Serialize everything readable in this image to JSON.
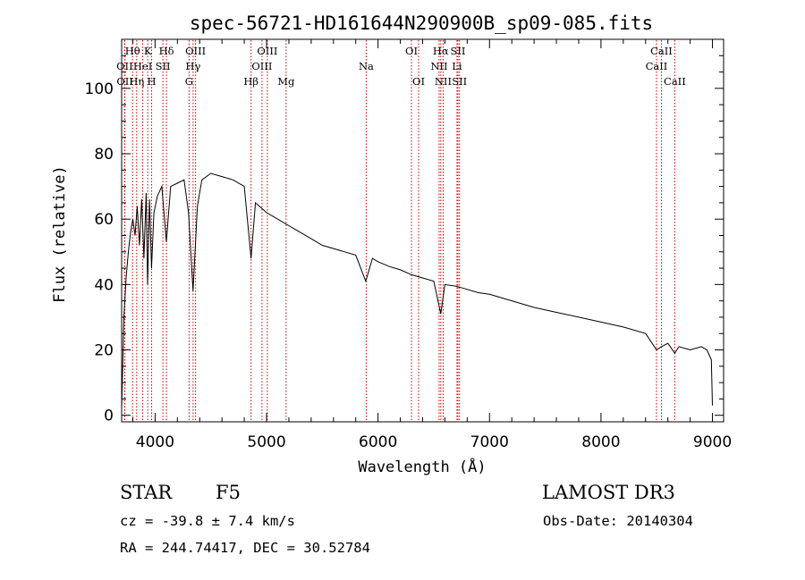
{
  "chart_data": {
    "type": "line",
    "title": "spec-56721-HD161644N290900B_sp09-085.fits",
    "xlabel": "Wavelength (Å)",
    "ylabel": "Flux (relative)",
    "xlim": [
      3700,
      9100
    ],
    "ylim": [
      -2,
      115
    ],
    "xticks": [
      4000,
      5000,
      6000,
      7000,
      8000,
      9000
    ],
    "yticks": [
      0,
      20,
      40,
      60,
      80,
      100
    ],
    "series": [
      {
        "name": "spectrum",
        "x": [
          3700,
          3720,
          3740,
          3760,
          3780,
          3800,
          3820,
          3840,
          3860,
          3880,
          3900,
          3920,
          3933,
          3950,
          3968,
          3990,
          4020,
          4060,
          4101,
          4140,
          4200,
          4260,
          4300,
          4340,
          4380,
          4420,
          4500,
          4600,
          4700,
          4800,
          4861,
          4900,
          5000,
          5100,
          5200,
          5300,
          5400,
          5500,
          5600,
          5700,
          5800,
          5890,
          5950,
          6000,
          6100,
          6200,
          6300,
          6400,
          6500,
          6563,
          6600,
          6700,
          6800,
          6900,
          7000,
          7200,
          7400,
          7600,
          7800,
          8000,
          8200,
          8400,
          8498,
          8542,
          8600,
          8662,
          8700,
          8800,
          8900,
          8950,
          8990,
          9000
        ],
        "y": [
          2,
          30,
          42,
          50,
          56,
          60,
          55,
          64,
          52,
          66,
          48,
          68,
          40,
          66,
          45,
          62,
          67,
          70,
          53,
          70,
          71,
          72,
          62,
          38,
          64,
          72,
          74,
          73,
          72,
          70,
          48,
          65,
          62,
          60,
          58,
          56,
          54,
          52,
          51,
          50,
          49,
          41,
          48,
          47,
          45.5,
          44.5,
          43,
          42,
          41,
          31,
          40,
          39.5,
          38.5,
          37.5,
          37,
          35,
          33,
          31.5,
          30,
          28.5,
          27,
          25,
          20,
          21,
          22,
          19,
          21,
          20,
          21,
          20,
          17,
          3
        ]
      }
    ],
    "spectral_lines": [
      {
        "label": "Hθ",
        "wavelength": 3798,
        "row": 0
      },
      {
        "label": "OII",
        "wavelength": 3727,
        "row": 1
      },
      {
        "label": "OII",
        "wavelength": 3729,
        "row": 2
      },
      {
        "label": "K",
        "wavelength": 3934,
        "row": 0
      },
      {
        "label": "HeI",
        "wavelength": 3889,
        "row": 1
      },
      {
        "label": "Hη",
        "wavelength": 3835,
        "row": 2
      },
      {
        "label": "Hδ",
        "wavelength": 4102,
        "row": 0
      },
      {
        "label": "SII",
        "wavelength": 4070,
        "row": 1
      },
      {
        "label": "H",
        "wavelength": 3969,
        "row": 2
      },
      {
        "label": "OIII",
        "wavelength": 4363,
        "row": 0
      },
      {
        "label": "Hγ",
        "wavelength": 4341,
        "row": 1
      },
      {
        "label": "G",
        "wavelength": 4305,
        "row": 2
      },
      {
        "label": "OIII",
        "wavelength": 5007,
        "row": 0
      },
      {
        "label": "OIII",
        "wavelength": 4959,
        "row": 1
      },
      {
        "label": "Hβ",
        "wavelength": 4861,
        "row": 2
      },
      {
        "label": "Mg",
        "wavelength": 5175,
        "row": 2
      },
      {
        "label": "Na",
        "wavelength": 5894,
        "row": 1
      },
      {
        "label": "OI",
        "wavelength": 6300,
        "row": 0
      },
      {
        "label": "OI",
        "wavelength": 6364,
        "row": 2
      },
      {
        "label": "Hα",
        "wavelength": 6563,
        "row": 0
      },
      {
        "label": "SII",
        "wavelength": 6717,
        "row": 0
      },
      {
        "label": "NII",
        "wavelength": 6548,
        "row": 1
      },
      {
        "label": "Li",
        "wavelength": 6708,
        "row": 1
      },
      {
        "label": "NII",
        "wavelength": 6584,
        "row": 2
      },
      {
        "label": "SII",
        "wavelength": 6731,
        "row": 2
      },
      {
        "label": "CaII",
        "wavelength": 8542,
        "row": 0
      },
      {
        "label": "CaII",
        "wavelength": 8498,
        "row": 1
      },
      {
        "label": "CaII",
        "wavelength": 8662,
        "row": 2
      }
    ],
    "line_color": "#cc0000"
  },
  "info": {
    "obj_class": "STAR",
    "subclass": "F5",
    "survey": "LAMOST DR3",
    "cz": "cz = -39.8 ± 7.4 km/s",
    "obs_date": "Obs-Date: 20140304",
    "radec": "RA = 244.74417, DEC =  30.52784"
  }
}
